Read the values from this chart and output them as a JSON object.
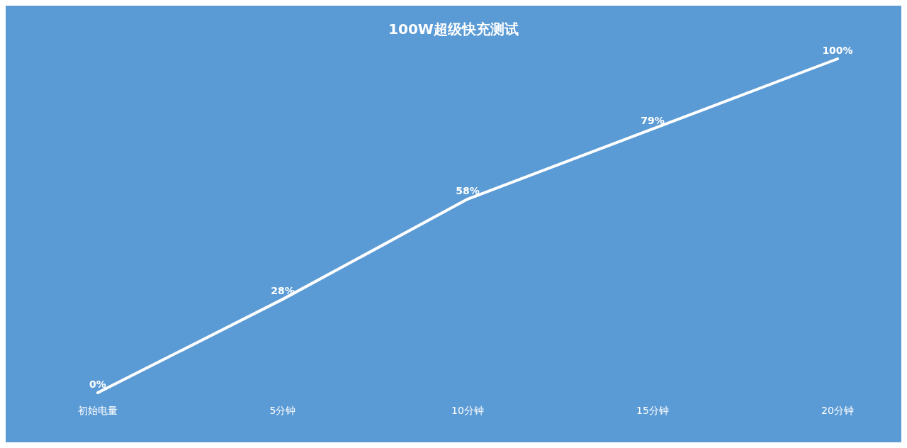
{
  "chart_data": {
    "type": "line",
    "title": "100W超级快充测试",
    "categories": [
      "初始电量",
      "5分钟",
      "10分钟",
      "15分钟",
      "20分钟"
    ],
    "series": [
      {
        "color": "#ffffff",
        "values": [
          0,
          28,
          58,
          79,
          100
        ],
        "value_labels": [
          "0%",
          "28%",
          "58%",
          "79%",
          "100%"
        ]
      }
    ],
    "grid": false,
    "marker": "none",
    "line_style": "solid"
  }
}
